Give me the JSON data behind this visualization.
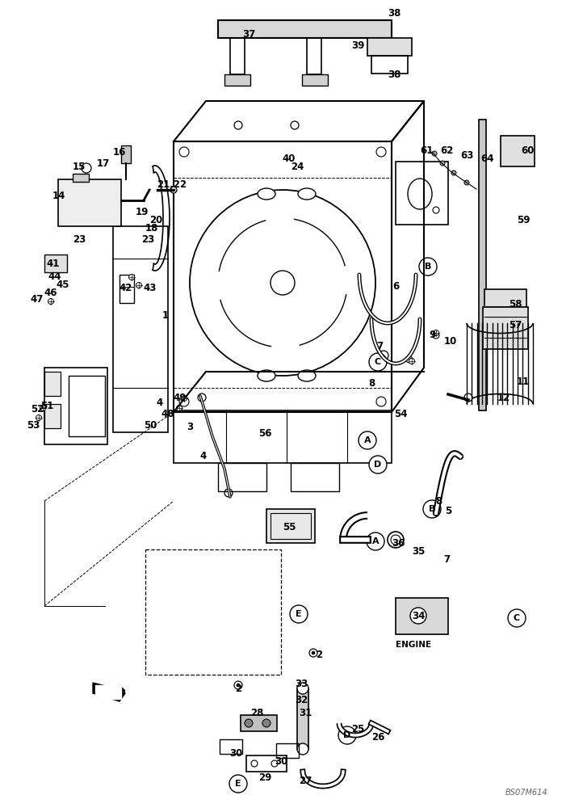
{
  "background_color": "#ffffff",
  "watermark": "BS07M614",
  "line_color": "#000000",
  "label_fontsize": 8.5,
  "part_positions": [
    [
      "1",
      205,
      390
    ],
    [
      "2",
      395,
      810
    ],
    [
      "2",
      295,
      852
    ],
    [
      "3",
      235,
      528
    ],
    [
      "4",
      252,
      565
    ],
    [
      "4",
      198,
      498
    ],
    [
      "5",
      555,
      632
    ],
    [
      "6",
      490,
      355
    ],
    [
      "7",
      470,
      428
    ],
    [
      "7",
      553,
      692
    ],
    [
      "8",
      460,
      475
    ],
    [
      "8",
      543,
      620
    ],
    [
      "9",
      535,
      415
    ],
    [
      "10",
      558,
      422
    ],
    [
      "11",
      648,
      472
    ],
    [
      "12",
      624,
      492
    ],
    [
      "14",
      73,
      242
    ],
    [
      "15",
      98,
      207
    ],
    [
      "16",
      148,
      188
    ],
    [
      "17",
      128,
      202
    ],
    [
      "18",
      188,
      282
    ],
    [
      "19",
      176,
      262
    ],
    [
      "20",
      193,
      272
    ],
    [
      "21,22",
      213,
      228
    ],
    [
      "23",
      183,
      297
    ],
    [
      "23",
      98,
      297
    ],
    [
      "24",
      368,
      207
    ],
    [
      "25",
      443,
      902
    ],
    [
      "26",
      468,
      912
    ],
    [
      "27",
      378,
      967
    ],
    [
      "28",
      318,
      882
    ],
    [
      "29",
      328,
      962
    ],
    [
      "30",
      292,
      932
    ],
    [
      "30",
      348,
      942
    ],
    [
      "31",
      378,
      882
    ],
    [
      "32",
      373,
      867
    ],
    [
      "33",
      373,
      847
    ],
    [
      "34",
      518,
      762
    ],
    [
      "35",
      518,
      682
    ],
    [
      "36",
      493,
      672
    ],
    [
      "37",
      308,
      42
    ],
    [
      "38",
      488,
      17
    ],
    [
      "38",
      488,
      92
    ],
    [
      "39",
      443,
      57
    ],
    [
      "40",
      358,
      197
    ],
    [
      "41",
      66,
      327
    ],
    [
      "42",
      156,
      357
    ],
    [
      "43",
      186,
      357
    ],
    [
      "44",
      68,
      342
    ],
    [
      "45",
      78,
      352
    ],
    [
      "46",
      63,
      362
    ],
    [
      "47",
      46,
      370
    ],
    [
      "48",
      208,
      512
    ],
    [
      "49",
      223,
      492
    ],
    [
      "50",
      186,
      527
    ],
    [
      "51",
      58,
      502
    ],
    [
      "52",
      46,
      507
    ],
    [
      "53",
      41,
      527
    ],
    [
      "54",
      496,
      512
    ],
    [
      "55",
      358,
      652
    ],
    [
      "56",
      328,
      537
    ],
    [
      "57",
      638,
      402
    ],
    [
      "58",
      638,
      377
    ],
    [
      "59",
      648,
      272
    ],
    [
      "60",
      653,
      187
    ],
    [
      "61",
      528,
      187
    ],
    [
      "62",
      553,
      187
    ],
    [
      "63",
      578,
      192
    ],
    [
      "64",
      603,
      197
    ]
  ],
  "circled_letters": [
    [
      "A",
      455,
      545
    ],
    [
      "A",
      465,
      670
    ],
    [
      "B",
      530,
      330
    ],
    [
      "B",
      535,
      630
    ],
    [
      "C",
      468,
      448
    ],
    [
      "C",
      640,
      765
    ],
    [
      "D",
      468,
      575
    ],
    [
      "D",
      430,
      910
    ],
    [
      "E",
      370,
      760
    ],
    [
      "E",
      295,
      970
    ]
  ]
}
